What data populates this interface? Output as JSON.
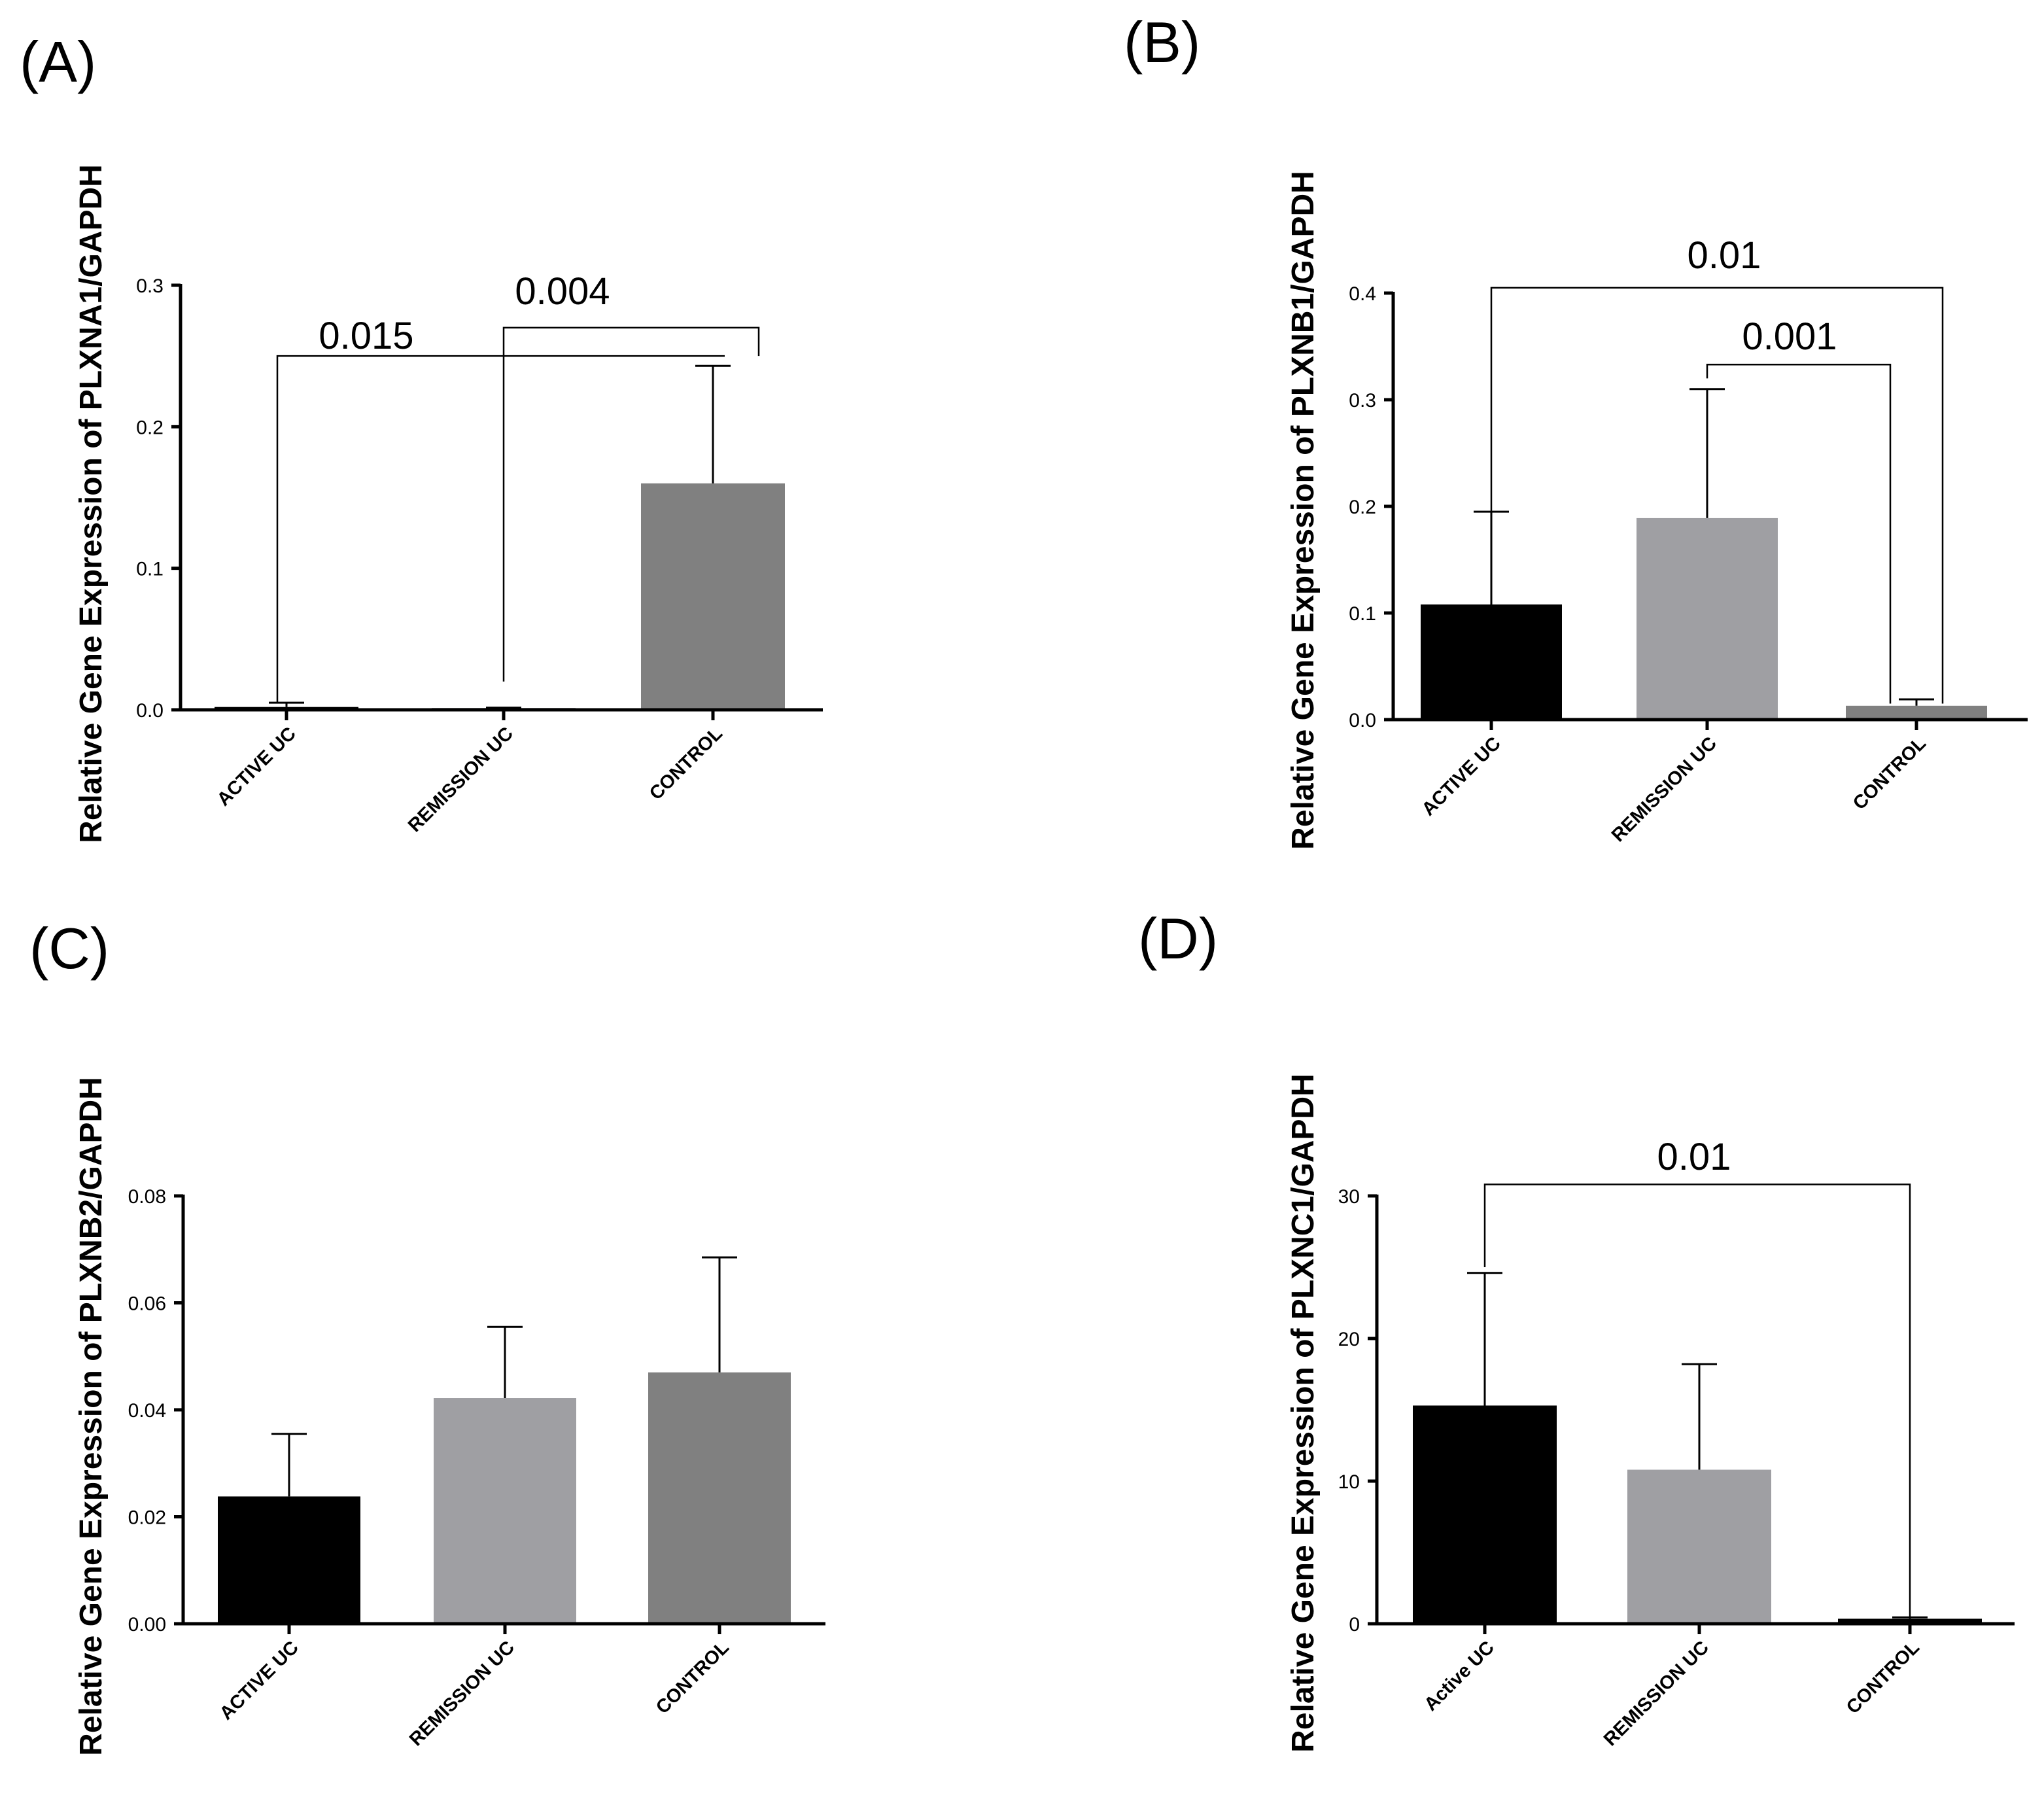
{
  "chart_data": [
    {
      "panel": "(A)",
      "type": "bar",
      "ylabel": "Relative Gene Expression of PLXNA1/GAPDH",
      "ylim": [
        0,
        0.3
      ],
      "yticks": [
        "0.0",
        "0.1",
        "0.2",
        "0.3"
      ],
      "categories": [
        "ACTIVE UC",
        "REMISSION UC",
        "CONTROL"
      ],
      "values": [
        0.002,
        0.0005,
        0.16
      ],
      "errors": [
        0.003,
        0.001,
        0.083
      ],
      "colors": [
        "#000000",
        "#9f9fa3",
        "#808080"
      ],
      "significance": [
        {
          "label": "0.015",
          "from": 0,
          "to": 2,
          "level": 0.25,
          "drop_from": 0.005,
          "drop_to": 0.25
        },
        {
          "label": "0.004",
          "from": 1,
          "to": 2,
          "level": 0.27,
          "drop_from": 0.02,
          "drop_to": 0.25
        }
      ]
    },
    {
      "panel": "(B)",
      "type": "bar",
      "ylabel": "Relative Gene Expression of  PLXNB1/GAPDH",
      "ylim": [
        0,
        0.4
      ],
      "yticks": [
        "0.0",
        "0.1",
        "0.2",
        "0.3",
        "0.4"
      ],
      "categories": [
        "ACTIVE UC",
        "REMISSION UC",
        "CONTROL"
      ],
      "values": [
        0.108,
        0.189,
        0.013
      ],
      "errors": [
        0.087,
        0.121,
        0.006
      ],
      "colors": [
        "#000000",
        "#9f9fa3",
        "#808080"
      ],
      "significance": [
        {
          "label": "0.01",
          "from": 0,
          "to": 2,
          "level": 0.405,
          "drop_from": 0.15,
          "drop_to": 0.015,
          "to_offset": 1
        },
        {
          "label": "0.001",
          "from": 1,
          "to": 2,
          "level": 0.333,
          "drop_from": 0.32,
          "drop_to": 0.015,
          "to_offset": -1
        }
      ]
    },
    {
      "panel": "(C)",
      "type": "bar",
      "ylabel": "Relative Gene Expression of PLXNB2/GAPDH",
      "ylim": [
        0,
        0.08
      ],
      "yticks": [
        "0.00",
        "0.02",
        "0.04",
        "0.06",
        "0.08"
      ],
      "categories": [
        "ACTIVE UC",
        "REMISSION UC",
        "CONTROL"
      ],
      "values": [
        0.0238,
        0.0422,
        0.047
      ],
      "errors": [
        0.0117,
        0.0133,
        0.0215
      ],
      "colors": [
        "#000000",
        "#9f9fa3",
        "#808080"
      ],
      "significance": []
    },
    {
      "panel": "(D)",
      "type": "bar",
      "ylabel": "Relative Gene Expression of PLXNC1/GAPDH",
      "ylim": [
        0,
        30
      ],
      "yticks": [
        "0",
        "10",
        "20",
        "30"
      ],
      "categories": [
        "Active UC",
        "REMISSION UC",
        "CONTROL"
      ],
      "values": [
        15.3,
        10.8,
        0.35
      ],
      "errors": [
        9.3,
        7.4,
        0.1
      ],
      "colors": [
        "#000000",
        "#9f9fa3",
        "#000000"
      ],
      "significance": [
        {
          "label": "0.01",
          "from": 0,
          "to": 2,
          "level": 30.8,
          "drop_from": 25,
          "drop_to": 0.45
        }
      ]
    }
  ]
}
